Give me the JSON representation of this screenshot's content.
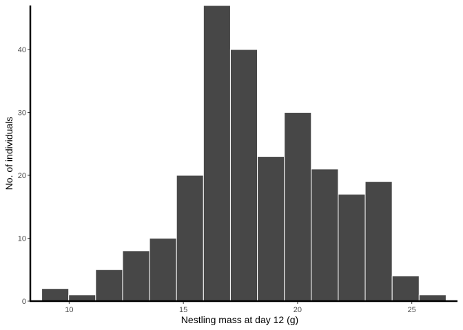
{
  "chart_data": {
    "type": "histogram",
    "xlabel": "Nestling mass at day 12 (g)",
    "ylabel": "No. of individuals",
    "xlim": [
      8.3,
      27.0
    ],
    "ylim": [
      0,
      47
    ],
    "x_ticks": [
      10,
      15,
      20,
      25
    ],
    "y_ticks": [
      0,
      10,
      20,
      30,
      40
    ],
    "bins": [
      {
        "x0": 8.8,
        "x1": 9.98,
        "count": 2
      },
      {
        "x0": 9.98,
        "x1": 11.16,
        "count": 1
      },
      {
        "x0": 11.16,
        "x1": 12.34,
        "count": 5
      },
      {
        "x0": 12.34,
        "x1": 13.52,
        "count": 8
      },
      {
        "x0": 13.52,
        "x1": 14.7,
        "count": 10
      },
      {
        "x0": 14.7,
        "x1": 15.88,
        "count": 20
      },
      {
        "x0": 15.88,
        "x1": 17.06,
        "count": 47
      },
      {
        "x0": 17.06,
        "x1": 18.24,
        "count": 40
      },
      {
        "x0": 18.24,
        "x1": 19.42,
        "count": 23
      },
      {
        "x0": 19.42,
        "x1": 20.6,
        "count": 30
      },
      {
        "x0": 20.6,
        "x1": 21.78,
        "count": 21
      },
      {
        "x0": 21.78,
        "x1": 22.96,
        "count": 17
      },
      {
        "x0": 22.96,
        "x1": 24.14,
        "count": 19
      },
      {
        "x0": 24.14,
        "x1": 25.32,
        "count": 4
      },
      {
        "x0": 25.32,
        "x1": 26.5,
        "count": 1
      }
    ],
    "bar_fill": "#474747",
    "bar_outline": "#ffffff",
    "axis_color": "#000000",
    "grid": false
  }
}
